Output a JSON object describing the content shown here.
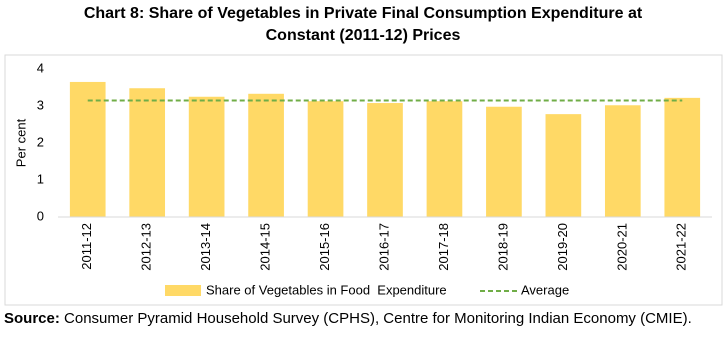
{
  "chart_data": {
    "type": "bar",
    "title": [
      "Chart 8: Share of Vegetables in Private Final Consumption Expenditure at",
      "Constant (2011-12) Prices"
    ],
    "ylabel": "Per cent",
    "categories": [
      "2011-12",
      "2012-13",
      "2013-14",
      "2014-15",
      "2015-16",
      "2016-17",
      "2017-18",
      "2018-19",
      "2019-20",
      "2020-21",
      "2021-22"
    ],
    "series": [
      {
        "name": "Share of Vegetables in Food  Expenditure",
        "type": "bar",
        "color": "#ffd966",
        "values": [
          3.65,
          3.48,
          3.25,
          3.33,
          3.13,
          3.08,
          3.13,
          2.98,
          2.78,
          3.02,
          3.22
        ]
      },
      {
        "name": "Average",
        "type": "line",
        "dashed": true,
        "color": "#70ad47",
        "values": [
          3.15,
          3.15,
          3.15,
          3.15,
          3.15,
          3.15,
          3.15,
          3.15,
          3.15,
          3.15,
          3.15
        ]
      }
    ],
    "ylim": [
      0,
      4
    ],
    "yticks": [
      0,
      1,
      2,
      3,
      4
    ],
    "grid": false
  },
  "source": {
    "label": "Source:",
    "text": "Consumer Pyramid Household Survey (CPHS), Centre for Monitoring Indian Economy (CMIE)."
  }
}
